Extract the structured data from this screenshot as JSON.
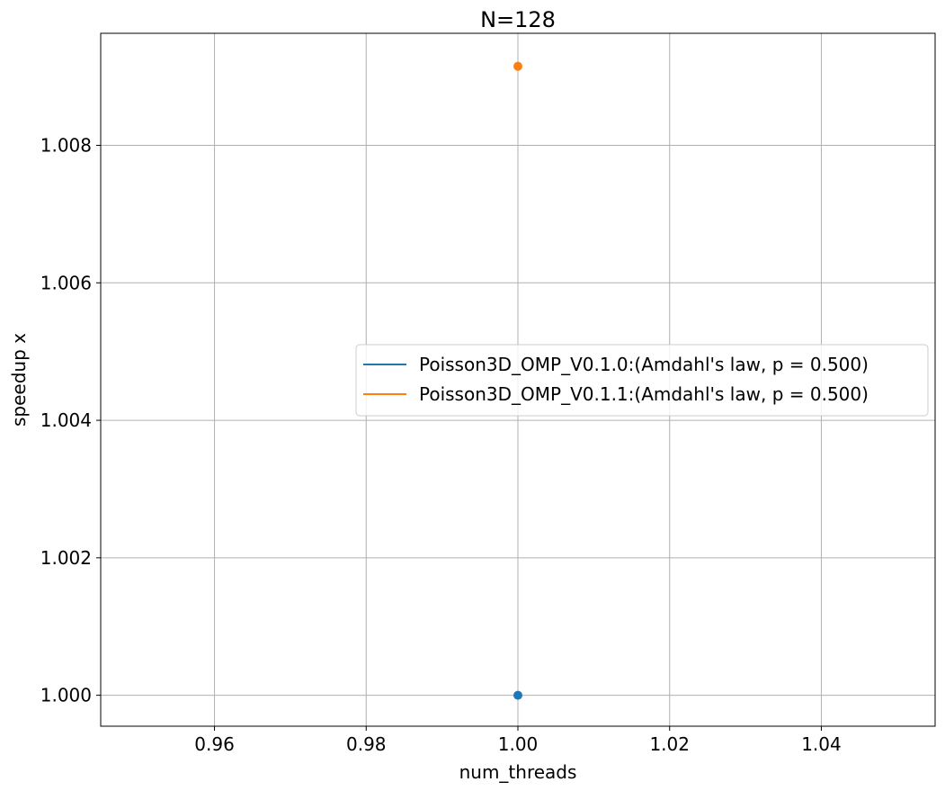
{
  "chart_data": {
    "type": "scatter",
    "title": "N=128",
    "xlabel": "num_threads",
    "ylabel": "speedup x",
    "xlim": [
      0.945,
      1.055
    ],
    "ylim": [
      0.99955,
      1.00963
    ],
    "xticks": [
      0.96,
      0.98,
      1.0,
      1.02,
      1.04
    ],
    "xtick_labels": [
      "0.96",
      "0.98",
      "1.00",
      "1.02",
      "1.04"
    ],
    "yticks": [
      1.0,
      1.002,
      1.004,
      1.006,
      1.008
    ],
    "ytick_labels": [
      "1.000",
      "1.002",
      "1.004",
      "1.006",
      "1.008"
    ],
    "grid": true,
    "legend_position": "center-right",
    "series": [
      {
        "name": "Poisson3D_OMP_V0.1.0:(Amdahl's law, p = 0.500)",
        "color": "#1f77b4",
        "points": [
          {
            "x": 1.0,
            "y": 1.0
          }
        ]
      },
      {
        "name": "Poisson3D_OMP_V0.1.1:(Amdahl's law, p = 0.500)",
        "color": "#ff7f0e",
        "points": [
          {
            "x": 1.0,
            "y": 1.00915
          }
        ]
      }
    ]
  }
}
